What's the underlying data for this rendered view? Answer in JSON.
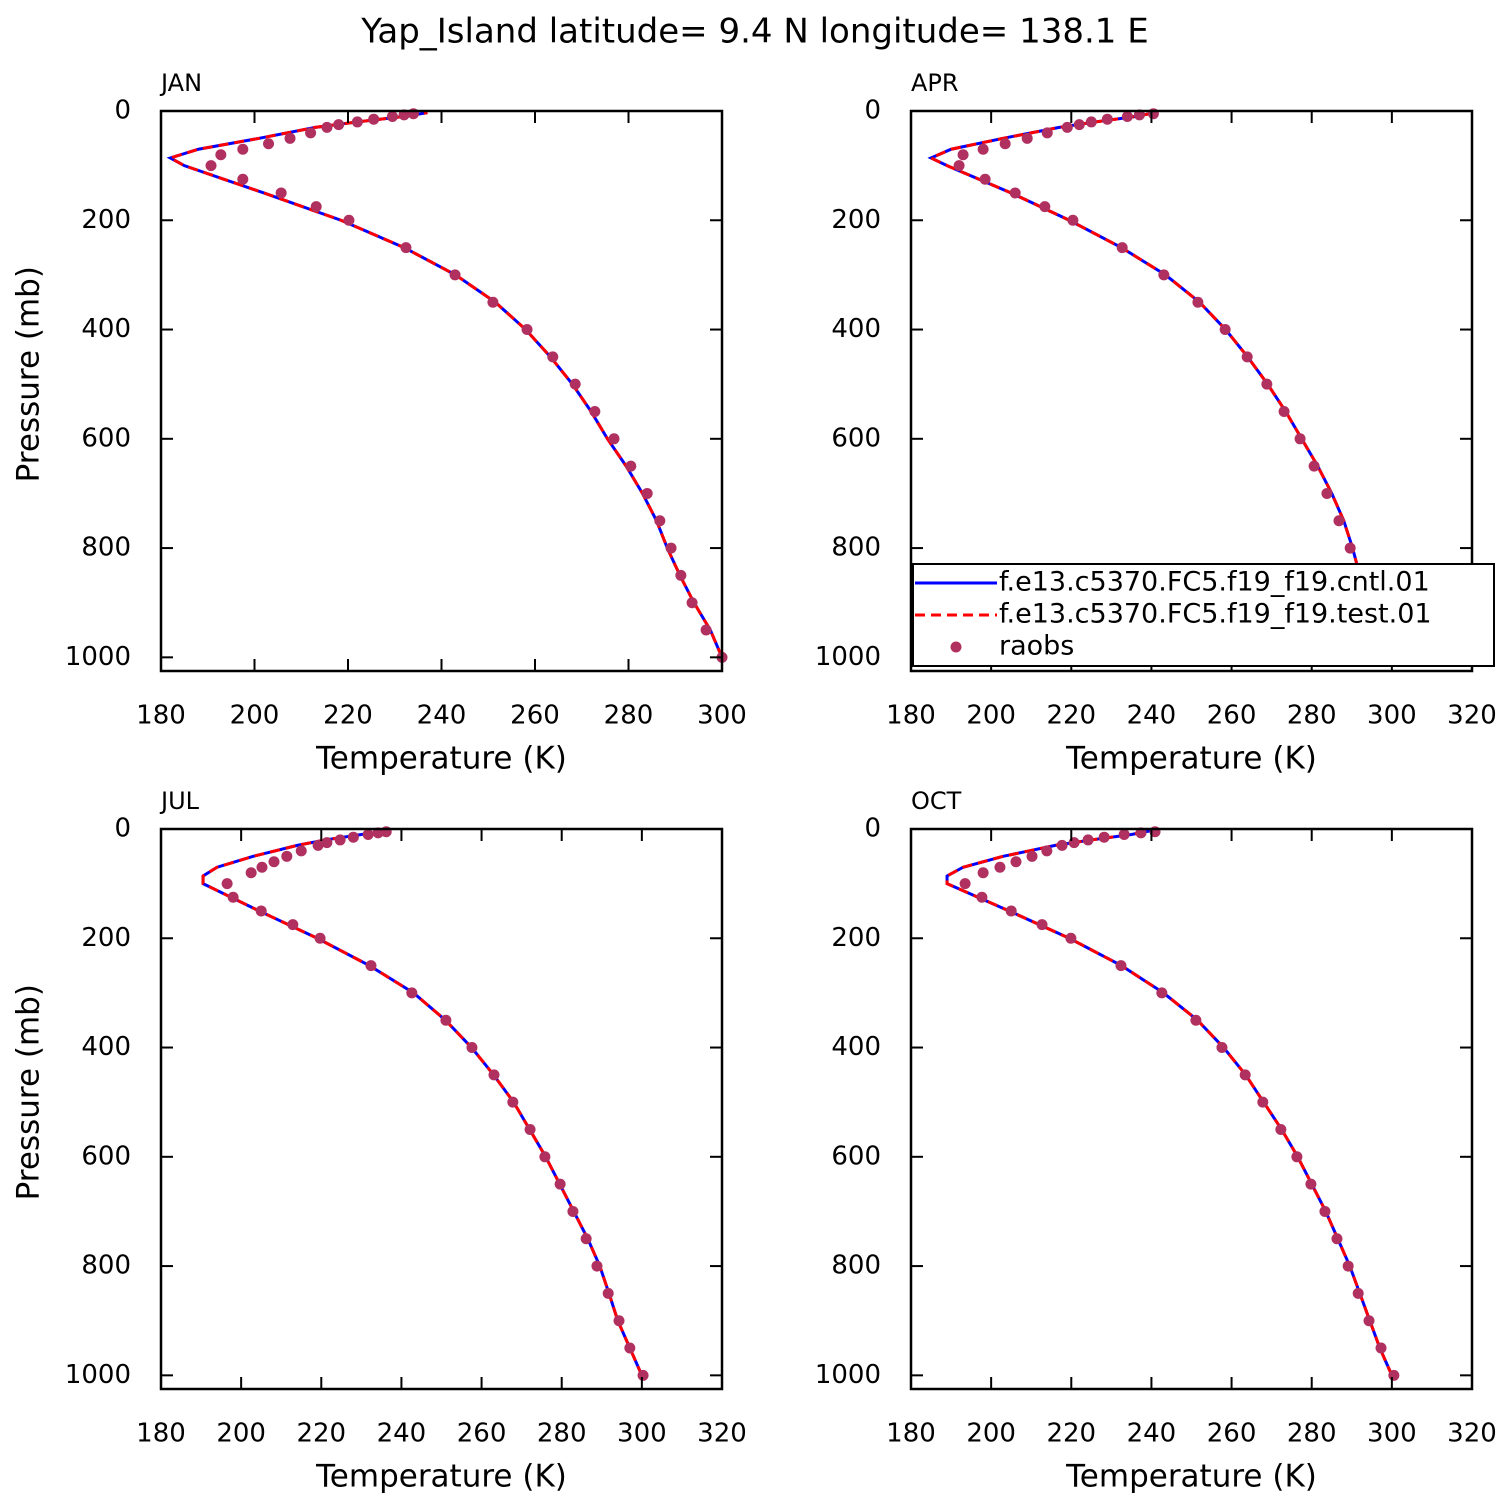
{
  "title": "Yap_Island  latitude= 9.4 N longitude= 138.1 E",
  "chart_data": [
    {
      "type": "line",
      "title": "JAN",
      "xlabel": "Temperature (K)",
      "ylabel": "Pressure (mb)",
      "xlim": [
        180,
        300
      ],
      "xticks": [
        180,
        200,
        220,
        240,
        260,
        280,
        300
      ],
      "ylim": [
        1025,
        0
      ],
      "yticks": [
        0,
        200,
        400,
        600,
        800,
        1000
      ],
      "legend": false,
      "series": [
        {
          "name": "f.e13.c5370.FC5.f19_f19.cntl.01",
          "color": "#0000ff",
          "linestyle": "solid",
          "x": [
            300,
            297.5,
            294,
            291,
            288.3,
            286,
            283,
            279.5,
            275.5,
            272,
            268,
            263.3,
            258,
            251.5,
            243,
            232,
            218.5,
            202,
            185,
            182,
            188,
            201,
            213,
            222,
            232,
            237
          ],
          "values": [
            1000,
            950,
            900,
            850,
            800,
            750,
            700,
            650,
            600,
            550,
            500,
            450,
            400,
            350,
            300,
            250,
            200,
            150,
            100,
            86,
            70,
            50,
            30,
            20,
            10,
            3
          ]
        },
        {
          "name": "f.e13.c5370.FC5.f19_f19.test.01",
          "color": "#ff0000",
          "linestyle": "dashed",
          "x": [
            300,
            297.5,
            294,
            291,
            288.3,
            286,
            283,
            279.5,
            275.5,
            272,
            268,
            263.3,
            258,
            251.5,
            243,
            232,
            218.5,
            202,
            185,
            182,
            188,
            201,
            213,
            222,
            232,
            237
          ],
          "values": [
            1000,
            950,
            900,
            850,
            800,
            750,
            700,
            650,
            600,
            550,
            500,
            450,
            400,
            350,
            300,
            250,
            200,
            150,
            100,
            86,
            70,
            50,
            30,
            20,
            10,
            3
          ]
        },
        {
          "name": "raobs",
          "color": "#b03060",
          "linestyle": "none",
          "marker": "circle",
          "x": [
            300,
            296.6,
            293.6,
            291.2,
            289.1,
            286.7,
            284,
            280.5,
            276.9,
            272.8,
            268.6,
            263.8,
            258.3,
            251,
            242.9,
            232.4,
            220.2,
            213.2,
            205.7,
            197.5,
            190.7,
            192.8,
            197.5,
            203,
            207.6,
            212,
            215.5,
            218,
            222,
            225.5,
            229.5,
            232,
            234
          ],
          "values": [
            1000,
            950,
            900,
            850,
            800,
            750,
            700,
            650,
            600,
            550,
            500,
            450,
            400,
            350,
            300,
            250,
            200,
            175,
            150,
            125,
            100,
            80,
            70,
            60,
            50,
            40,
            30,
            25,
            20,
            15,
            10,
            7,
            5
          ]
        }
      ]
    },
    {
      "type": "line",
      "title": "APR",
      "xlabel": "Temperature (K)",
      "xlim": [
        180,
        320
      ],
      "xticks": [
        180,
        200,
        220,
        240,
        260,
        280,
        300,
        320
      ],
      "ylim": [
        1025,
        0
      ],
      "yticks": [
        0,
        200,
        400,
        600,
        800,
        1000
      ],
      "legend": true,
      "legend_position": "lower right",
      "series": [
        {
          "name": "f.e13.c5370.FC5.f19_f19.cntl.01",
          "color": "#0000ff",
          "linestyle": "solid",
          "x": [
            300,
            297,
            294.5,
            292,
            290.2,
            288,
            285,
            281.5,
            277.5,
            273.5,
            269,
            264,
            258.5,
            252,
            243.5,
            232.5,
            219.5,
            205,
            189,
            185,
            190,
            203,
            217,
            226,
            236,
            241
          ],
          "values": [
            1000,
            950,
            900,
            850,
            800,
            750,
            700,
            650,
            600,
            550,
            500,
            450,
            400,
            350,
            300,
            250,
            200,
            150,
            100,
            86,
            70,
            50,
            30,
            20,
            10,
            3
          ]
        },
        {
          "name": "f.e13.c5370.FC5.f19_f19.test.01",
          "color": "#ff0000",
          "linestyle": "dashed",
          "x": [
            300,
            297,
            294.5,
            292,
            290.2,
            288,
            285,
            281.5,
            277.5,
            273.5,
            269,
            264,
            258.5,
            252,
            243.5,
            232.5,
            219.5,
            205,
            189,
            185,
            190,
            203,
            217,
            226,
            236,
            241
          ],
          "values": [
            1000,
            950,
            900,
            850,
            800,
            750,
            700,
            650,
            600,
            550,
            500,
            450,
            400,
            350,
            300,
            250,
            200,
            150,
            100,
            86,
            70,
            50,
            30,
            20,
            10,
            3
          ]
        },
        {
          "name": "raobs",
          "color": "#b03060",
          "linestyle": "none",
          "marker": "circle",
          "x": [
            300.5,
            296.8,
            293.6,
            291.3,
            289.6,
            286.8,
            283.8,
            280.6,
            277.1,
            273.1,
            268.8,
            263.9,
            258.4,
            251.6,
            243.1,
            232.7,
            220.4,
            213.4,
            206,
            198.5,
            192,
            193,
            198,
            203.5,
            209,
            214,
            219,
            222,
            225,
            229,
            234,
            237,
            240.5
          ],
          "values": [
            1000,
            950,
            900,
            850,
            800,
            750,
            700,
            650,
            600,
            550,
            500,
            450,
            400,
            350,
            300,
            250,
            200,
            175,
            150,
            125,
            100,
            80,
            70,
            60,
            50,
            40,
            30,
            25,
            20,
            15,
            10,
            7,
            5
          ]
        }
      ]
    },
    {
      "type": "line",
      "title": "JUL",
      "xlabel": "Temperature (K)",
      "ylabel": "Pressure (mb)",
      "xlim": [
        180,
        320
      ],
      "xticks": [
        180,
        200,
        220,
        240,
        260,
        280,
        300,
        320
      ],
      "ylim": [
        1025,
        0
      ],
      "yticks": [
        0,
        200,
        400,
        600,
        800,
        1000
      ],
      "legend": false,
      "series": [
        {
          "name": "f.e13.c5370.FC5.f19_f19.cntl.01",
          "color": "#0000ff",
          "linestyle": "solid",
          "x": [
            300,
            297,
            294,
            291.8,
            289.5,
            286.5,
            283,
            279.5,
            276,
            272,
            268,
            263,
            257.5,
            251,
            243,
            232,
            219,
            204.5,
            190.5,
            190.5,
            194,
            203,
            214,
            221,
            230,
            237
          ],
          "values": [
            1000,
            950,
            900,
            850,
            800,
            750,
            700,
            650,
            600,
            550,
            500,
            450,
            400,
            350,
            300,
            250,
            200,
            150,
            100,
            86,
            70,
            50,
            30,
            20,
            10,
            3
          ]
        },
        {
          "name": "f.e13.c5370.FC5.f19_f19.test.01",
          "color": "#ff0000",
          "linestyle": "dashed",
          "x": [
            300,
            297,
            294,
            291.8,
            289.5,
            286.5,
            283,
            279.5,
            276,
            272,
            268,
            263,
            257.5,
            251,
            243,
            232,
            219,
            204.5,
            190.5,
            190.5,
            194,
            203,
            214,
            221,
            230,
            237
          ],
          "values": [
            1000,
            950,
            900,
            850,
            800,
            750,
            700,
            650,
            600,
            550,
            500,
            450,
            400,
            350,
            300,
            250,
            200,
            150,
            100,
            86,
            70,
            50,
            30,
            20,
            10,
            3
          ]
        },
        {
          "name": "raobs",
          "color": "#b03060",
          "linestyle": "none",
          "marker": "circle",
          "x": [
            300.3,
            297,
            294.3,
            291.6,
            288.8,
            286.1,
            282.8,
            279.6,
            275.8,
            272.1,
            267.8,
            263.1,
            257.6,
            251.1,
            242.6,
            232.4,
            219.7,
            212.9,
            205,
            198,
            196.5,
            202.5,
            205.2,
            208.2,
            211.4,
            215,
            219.2,
            221.4,
            224.7,
            228,
            231.7,
            234.2,
            236.2
          ],
          "values": [
            1000,
            950,
            900,
            850,
            800,
            750,
            700,
            650,
            600,
            550,
            500,
            450,
            400,
            350,
            300,
            250,
            200,
            175,
            150,
            125,
            100,
            80,
            70,
            60,
            50,
            40,
            30,
            25,
            20,
            15,
            10,
            7,
            5
          ]
        }
      ]
    },
    {
      "type": "line",
      "title": "OCT",
      "xlabel": "Temperature (K)",
      "xlim": [
        180,
        320
      ],
      "xticks": [
        180,
        200,
        220,
        240,
        260,
        280,
        300,
        320
      ],
      "ylim": [
        1025,
        0
      ],
      "yticks": [
        0,
        200,
        400,
        600,
        800,
        1000
      ],
      "legend": false,
      "series": [
        {
          "name": "f.e13.c5370.FC5.f19_f19.cntl.01",
          "color": "#0000ff",
          "linestyle": "solid",
          "x": [
            300,
            297,
            294.5,
            292,
            289.5,
            286.5,
            283.5,
            280,
            276.5,
            272.5,
            268,
            263.5,
            258,
            251.5,
            243,
            232.5,
            219.5,
            204.5,
            189,
            189,
            193,
            203,
            216,
            225,
            235,
            240
          ],
          "values": [
            1000,
            950,
            900,
            850,
            800,
            750,
            700,
            650,
            600,
            550,
            500,
            450,
            400,
            350,
            300,
            250,
            200,
            150,
            100,
            86,
            70,
            50,
            30,
            20,
            10,
            3
          ]
        },
        {
          "name": "f.e13.c5370.FC5.f19_f19.test.01",
          "color": "#ff0000",
          "linestyle": "dashed",
          "x": [
            300,
            297,
            294.5,
            292,
            289.5,
            286.5,
            283.5,
            280,
            276.5,
            272.5,
            268,
            263.5,
            258,
            251.5,
            243,
            232.5,
            219.5,
            204.5,
            189,
            189,
            193,
            203,
            216,
            225,
            235,
            240
          ],
          "values": [
            1000,
            950,
            900,
            850,
            800,
            750,
            700,
            650,
            600,
            550,
            500,
            450,
            400,
            350,
            300,
            250,
            200,
            150,
            100,
            86,
            70,
            50,
            30,
            20,
            10,
            3
          ]
        },
        {
          "name": "raobs",
          "color": "#b03060",
          "linestyle": "none",
          "marker": "circle",
          "x": [
            300.5,
            297.3,
            294.3,
            291.6,
            289.1,
            286.3,
            283.3,
            279.8,
            276.3,
            272.3,
            267.8,
            263.4,
            257.6,
            251.1,
            242.6,
            232.4,
            219.9,
            212.7,
            205,
            197.7,
            193.5,
            198,
            202.2,
            206.2,
            210.2,
            213.9,
            217.7,
            220.7,
            224.2,
            228.2,
            233.2,
            237.4,
            240.9
          ],
          "values": [
            1000,
            950,
            900,
            850,
            800,
            750,
            700,
            650,
            600,
            550,
            500,
            450,
            400,
            350,
            300,
            250,
            200,
            175,
            150,
            125,
            100,
            80,
            70,
            60,
            50,
            40,
            30,
            25,
            20,
            15,
            10,
            7,
            5
          ]
        }
      ]
    }
  ]
}
